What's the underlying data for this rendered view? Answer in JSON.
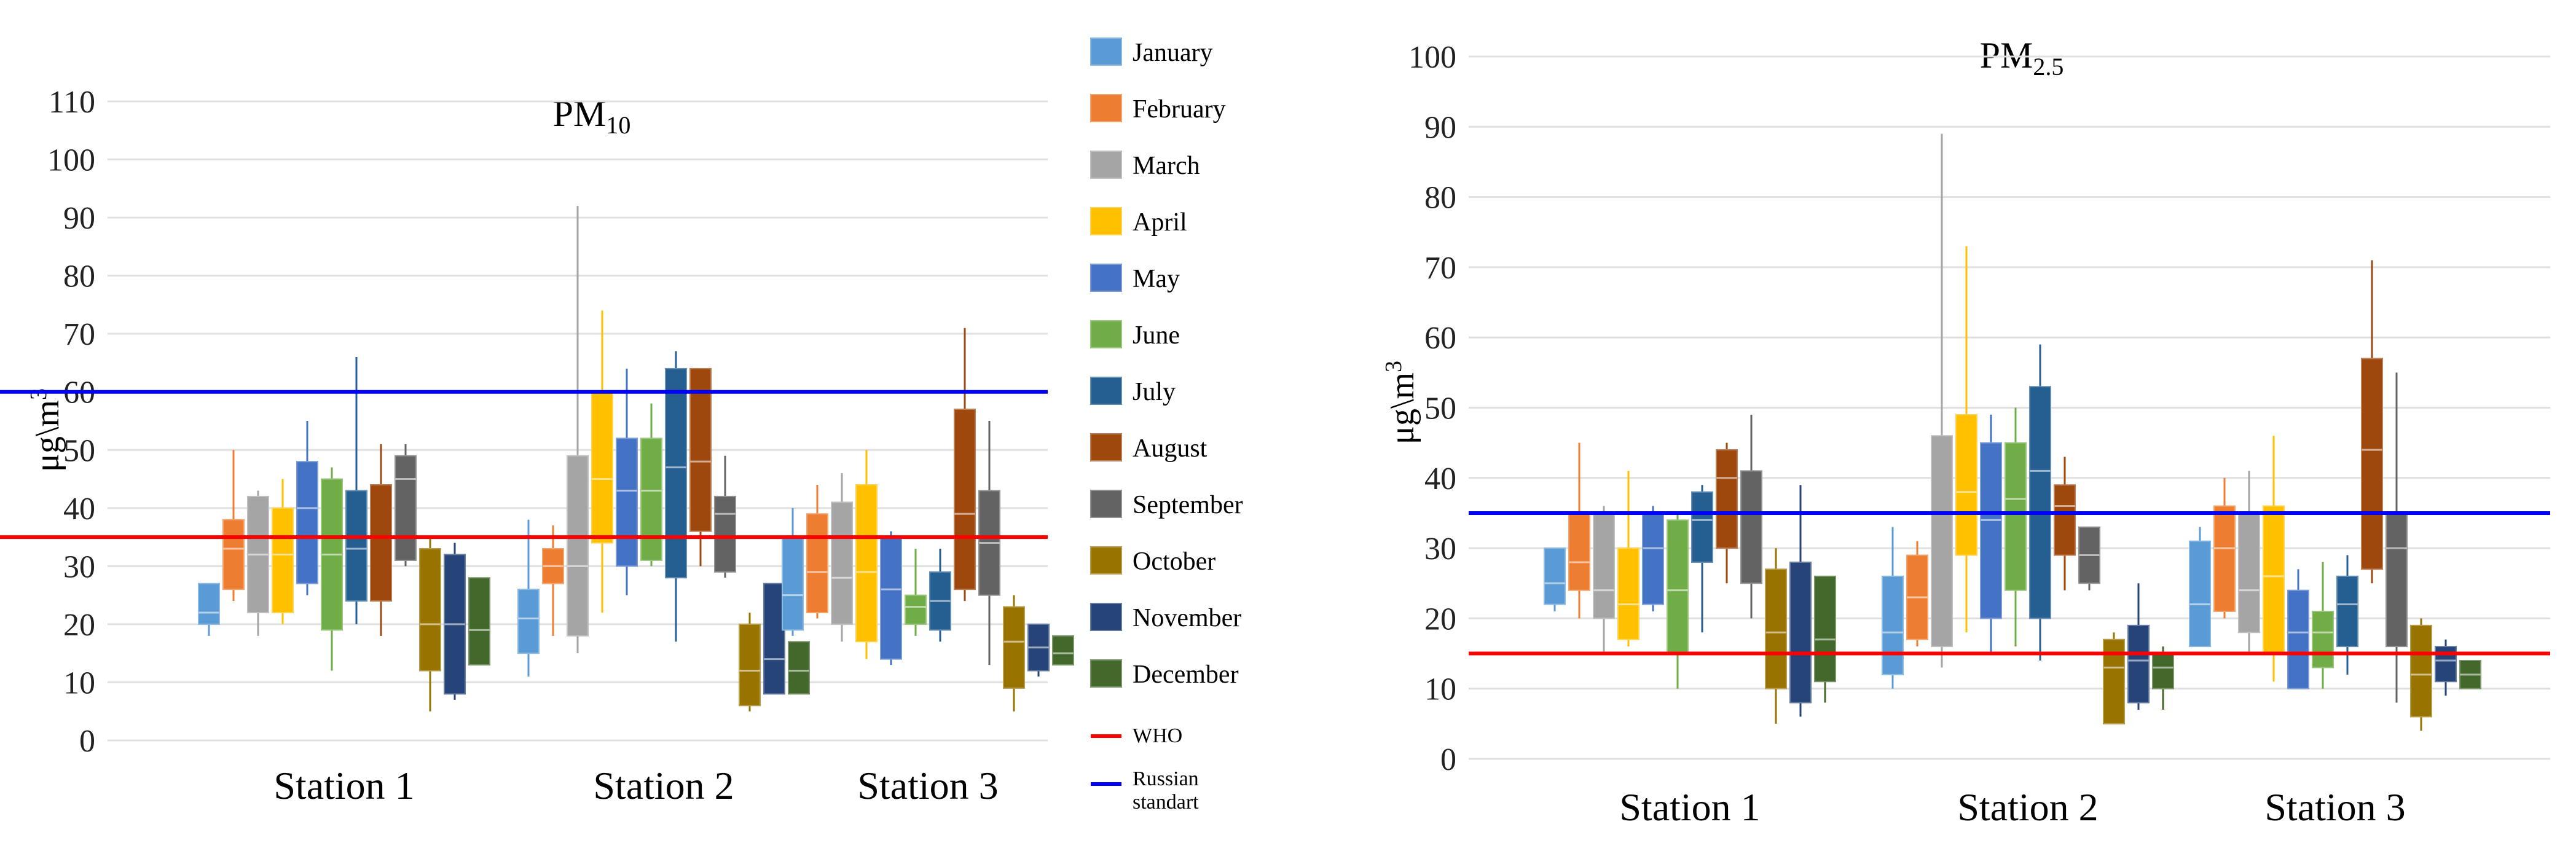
{
  "legend": {
    "items": [
      {
        "label": "January",
        "color": "#5b9bd5"
      },
      {
        "label": "February",
        "color": "#ed7d31"
      },
      {
        "label": "March",
        "color": "#a5a5a5"
      },
      {
        "label": "April",
        "color": "#ffc000"
      },
      {
        "label": "May",
        "color": "#4472c4"
      },
      {
        "label": "June",
        "color": "#70ad47"
      },
      {
        "label": "July",
        "color": "#255e91"
      },
      {
        "label": "August",
        "color": "#9e480e"
      },
      {
        "label": "September",
        "color": "#636363"
      },
      {
        "label": "October",
        "color": "#997300"
      },
      {
        "label": "November",
        "color": "#264478"
      },
      {
        "label": "December",
        "color": "#43682b"
      }
    ],
    "lines": [
      {
        "label": "WHO",
        "color": "#ff0000"
      },
      {
        "label": "Russian standart",
        "color": "#0000ff"
      }
    ]
  },
  "chart_data": [
    {
      "type": "box",
      "title": "PM10",
      "ylabel": "μg\\m3",
      "ylim": [
        0,
        110
      ],
      "yticks": [
        "0",
        "10",
        "20",
        "30",
        "40",
        "50",
        "60",
        "70",
        "80",
        "90",
        "100",
        "110"
      ],
      "categories": [
        "Station 1",
        "Station 2",
        "Station 3"
      ],
      "reference_lines": [
        {
          "name": "WHO",
          "value": 35
        },
        {
          "name": "Russian standart",
          "value": 60
        }
      ],
      "series": [
        {
          "name": "January",
          "boxes": [
            [
              18,
              20,
              22,
              27,
              27
            ],
            [
              11,
              15,
              21,
              26,
              38
            ],
            [
              18,
              19,
              25,
              35,
              40
            ]
          ]
        },
        {
          "name": "February",
          "boxes": [
            [
              24,
              26,
              33,
              38,
              50
            ],
            [
              18,
              27,
              30,
              33,
              37
            ],
            [
              21,
              22,
              29,
              39,
              44
            ]
          ]
        },
        {
          "name": "March",
          "boxes": [
            [
              18,
              22,
              32,
              42,
              43
            ],
            [
              15,
              18,
              30,
              49,
              92
            ],
            [
              17,
              20,
              28,
              41,
              46
            ]
          ]
        },
        {
          "name": "April",
          "boxes": [
            [
              20,
              22,
              32,
              40,
              45
            ],
            [
              22,
              34,
              45,
              60,
              74
            ],
            [
              14,
              17,
              29,
              44,
              50
            ]
          ]
        },
        {
          "name": "May",
          "boxes": [
            [
              25,
              27,
              40,
              48,
              55
            ],
            [
              25,
              30,
              43,
              52,
              64
            ],
            [
              13,
              14,
              26,
              35,
              36
            ]
          ]
        },
        {
          "name": "June",
          "boxes": [
            [
              12,
              19,
              32,
              45,
              47
            ],
            [
              30,
              31,
              43,
              52,
              58
            ],
            [
              18,
              20,
              23,
              25,
              33
            ]
          ]
        },
        {
          "name": "July",
          "boxes": [
            [
              20,
              24,
              33,
              43,
              66
            ],
            [
              17,
              28,
              47,
              64,
              67
            ],
            [
              17,
              19,
              24,
              29,
              33
            ]
          ]
        },
        {
          "name": "August",
          "boxes": [
            [
              18,
              24,
              35,
              44,
              51
            ],
            [
              30,
              36,
              48,
              64,
              64
            ],
            [
              24,
              26,
              39,
              57,
              71
            ]
          ]
        },
        {
          "name": "September",
          "boxes": [
            [
              30,
              31,
              45,
              49,
              51
            ],
            [
              28,
              29,
              39,
              42,
              49
            ],
            [
              13,
              25,
              34,
              43,
              55
            ]
          ]
        },
        {
          "name": "October",
          "boxes": [
            [
              5,
              12,
              20,
              33,
              35
            ],
            [
              5,
              6,
              12,
              20,
              22
            ],
            [
              5,
              9,
              17,
              23,
              25
            ]
          ]
        },
        {
          "name": "November",
          "boxes": [
            [
              7,
              8,
              20,
              32,
              34
            ],
            [
              8,
              8,
              14,
              27,
              27
            ],
            [
              11,
              12,
              16,
              20,
              20
            ]
          ]
        },
        {
          "name": "December",
          "boxes": [
            [
              13,
              13,
              19,
              28,
              28
            ],
            [
              8,
              8,
              12,
              17,
              17
            ],
            [
              13,
              13,
              15,
              18,
              18
            ]
          ]
        }
      ]
    },
    {
      "type": "box",
      "title": "PM2.5",
      "ylabel": "μg\\m3",
      "ylim": [
        0,
        100
      ],
      "yticks": [
        "0",
        "10",
        "20",
        "30",
        "40",
        "50",
        "60",
        "70",
        "80",
        "90",
        "100"
      ],
      "categories": [
        "Station 1",
        "Station 2",
        "Station 3"
      ],
      "reference_lines": [
        {
          "name": "WHO",
          "value": 15
        },
        {
          "name": "Russian standart",
          "value": 35
        }
      ],
      "series": [
        {
          "name": "January",
          "boxes": [
            [
              21,
              22,
              25,
              30,
              30
            ],
            [
              10,
              12,
              18,
              26,
              33
            ],
            [
              16,
              16,
              22,
              31,
              33
            ]
          ]
        },
        {
          "name": "February",
          "boxes": [
            [
              20,
              24,
              28,
              35,
              45
            ],
            [
              16,
              17,
              23,
              29,
              31
            ],
            [
              20,
              21,
              30,
              36,
              40
            ]
          ]
        },
        {
          "name": "March",
          "boxes": [
            [
              15,
              20,
              24,
              35,
              36
            ],
            [
              13,
              16,
              35,
              46,
              89
            ],
            [
              15,
              18,
              24,
              35,
              41
            ]
          ]
        },
        {
          "name": "April",
          "boxes": [
            [
              16,
              17,
              22,
              30,
              41
            ],
            [
              18,
              29,
              38,
              49,
              73
            ],
            [
              11,
              15,
              26,
              36,
              46
            ]
          ]
        },
        {
          "name": "May",
          "boxes": [
            [
              21,
              22,
              30,
              35,
              36
            ],
            [
              15,
              20,
              34,
              45,
              49
            ],
            [
              10,
              10,
              18,
              24,
              27
            ]
          ]
        },
        {
          "name": "June",
          "boxes": [
            [
              10,
              15,
              24,
              34,
              35
            ],
            [
              16,
              24,
              37,
              45,
              50
            ],
            [
              10,
              13,
              18,
              21,
              28
            ]
          ]
        },
        {
          "name": "July",
          "boxes": [
            [
              18,
              28,
              34,
              38,
              39
            ],
            [
              14,
              20,
              41,
              53,
              59
            ],
            [
              12,
              16,
              22,
              26,
              29
            ]
          ]
        },
        {
          "name": "August",
          "boxes": [
            [
              25,
              30,
              40,
              44,
              45
            ],
            [
              24,
              29,
              36,
              39,
              43
            ],
            [
              25,
              27,
              44,
              57,
              71
            ]
          ]
        },
        {
          "name": "September",
          "boxes": [
            [
              20,
              25,
              35,
              41,
              49
            ],
            [
              24,
              25,
              29,
              33,
              33
            ],
            [
              8,
              16,
              30,
              35,
              55
            ]
          ]
        },
        {
          "name": "October",
          "boxes": [
            [
              5,
              10,
              18,
              27,
              30
            ],
            [
              5,
              5,
              13,
              17,
              18
            ],
            [
              4,
              6,
              12,
              19,
              20
            ]
          ]
        },
        {
          "name": "November",
          "boxes": [
            [
              6,
              8,
              15,
              28,
              39
            ],
            [
              7,
              8,
              14,
              19,
              25
            ],
            [
              9,
              11,
              14,
              16,
              17
            ]
          ]
        },
        {
          "name": "December",
          "boxes": [
            [
              8,
              11,
              17,
              26,
              26
            ],
            [
              7,
              10,
              13,
              15,
              16
            ],
            [
              10,
              10,
              12,
              14,
              14
            ]
          ]
        }
      ]
    }
  ]
}
